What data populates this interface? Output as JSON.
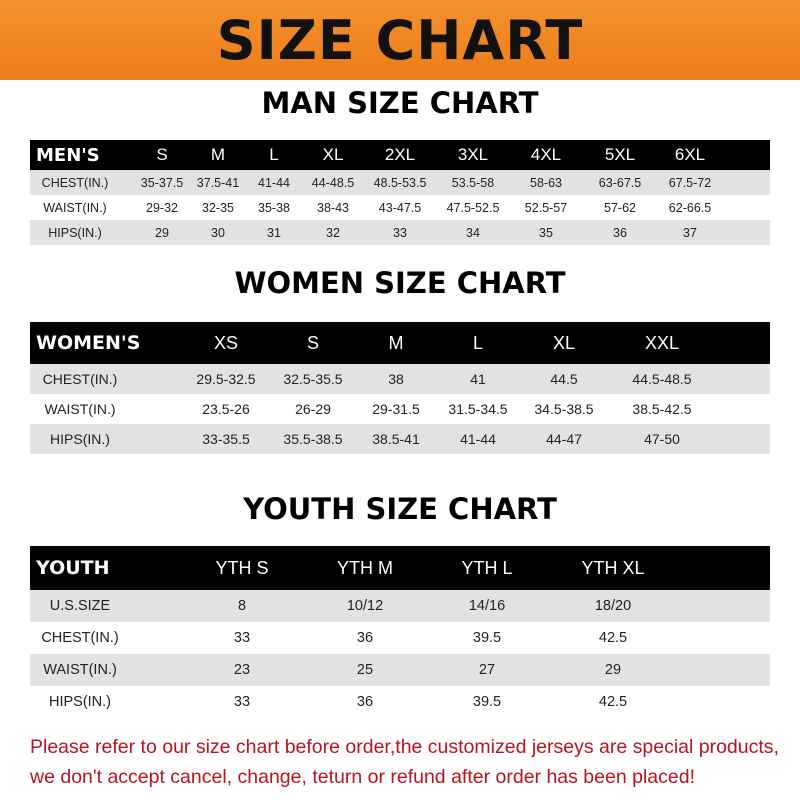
{
  "title": "SIZE CHART",
  "men": {
    "title": "MAN SIZE CHART",
    "header": [
      "MEN'S",
      "S",
      "M",
      "L",
      "XL",
      "2XL",
      "3XL",
      "4XL",
      "5XL",
      "6XL"
    ],
    "rows": [
      [
        "CHEST(IN.)",
        "35-37.5",
        "37.5-41",
        "41-44",
        "44-48.5",
        "48.5-53.5",
        "53.5-58",
        "58-63",
        "63-67.5",
        "67.5-72"
      ],
      [
        "WAIST(IN.)",
        "29-32",
        "32-35",
        "35-38",
        "38-43",
        "43-47.5",
        "47.5-52.5",
        "52.5-57",
        "57-62",
        "62-66.5"
      ],
      [
        "HIPS(IN.)",
        "29",
        "30",
        "31",
        "32",
        "33",
        "34",
        "35",
        "36",
        "37"
      ]
    ]
  },
  "women": {
    "title": "WOMEN SIZE CHART",
    "header": [
      "WOMEN'S",
      "XS",
      "S",
      "M",
      "L",
      "XL",
      "XXL"
    ],
    "rows": [
      [
        "CHEST(IN.)",
        "29.5-32.5",
        "32.5-35.5",
        "38",
        "41",
        "44.5",
        "44.5-48.5"
      ],
      [
        "WAIST(IN.)",
        "23.5-26",
        "26-29",
        "29-31.5",
        "31.5-34.5",
        "34.5-38.5",
        "38.5-42.5"
      ],
      [
        "HIPS(IN.)",
        "33-35.5",
        "35.5-38.5",
        "38.5-41",
        "41-44",
        "44-47",
        "47-50"
      ]
    ]
  },
  "youth": {
    "title": "YOUTH SIZE CHART",
    "header": [
      "YOUTH",
      "YTH S",
      "YTH M",
      "YTH L",
      "YTH XL"
    ],
    "rows": [
      [
        "U.S.SIZE",
        "8",
        "10/12",
        "14/16",
        "18/20"
      ],
      [
        "CHEST(IN.)",
        "33",
        "36",
        "39.5",
        "42.5"
      ],
      [
        "WAIST(IN.)",
        "23",
        "25",
        "27",
        "29"
      ],
      [
        "HIPS(IN.)",
        "33",
        "36",
        "39.5",
        "42.5"
      ]
    ]
  },
  "notice": [
    "Please refer to our size chart before order,the customized jerseys are special products,",
    "we don't accept cancel, change, teturn or refund after order has been placed!"
  ],
  "colors": {
    "banner": "#ef8620",
    "header_row": "#000000",
    "stripe": "#e2e2e2",
    "notice": "#b8141f"
  }
}
